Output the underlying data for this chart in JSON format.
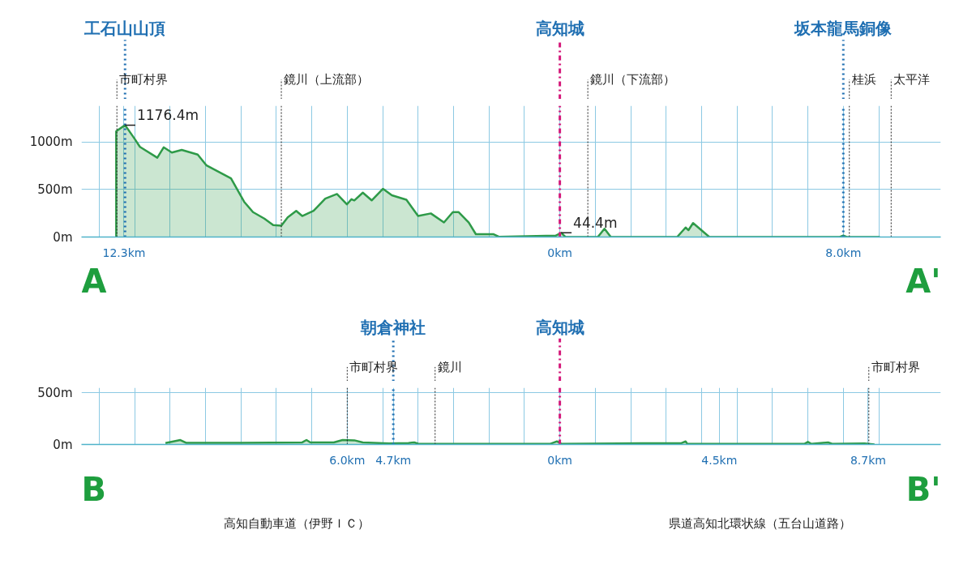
{
  "chart_data": [
    {
      "type": "area",
      "xlim": [
        -13.5,
        10.75
      ],
      "ylim": [
        0,
        1380
      ],
      "grid": true,
      "xticks": [
        {
          "value": -13,
          "label": null
        },
        {
          "value": -12.3,
          "label": "12.3km"
        },
        {
          "value": -12,
          "label": null
        },
        {
          "value": -11,
          "label": null
        },
        {
          "value": -10,
          "label": null
        },
        {
          "value": -9,
          "label": null
        },
        {
          "value": -8,
          "label": null
        },
        {
          "value": -7,
          "label": null
        },
        {
          "value": -6,
          "label": null
        },
        {
          "value": -5,
          "label": null
        },
        {
          "value": -4,
          "label": null
        },
        {
          "value": -3,
          "label": null
        },
        {
          "value": -2,
          "label": null
        },
        {
          "value": -1,
          "label": null
        },
        {
          "value": 0,
          "label": "0km"
        },
        {
          "value": 1,
          "label": null
        },
        {
          "value": 2,
          "label": null
        },
        {
          "value": 3,
          "label": null
        },
        {
          "value": 4,
          "label": null
        },
        {
          "value": 5,
          "label": null
        },
        {
          "value": 6,
          "label": null
        },
        {
          "value": 7,
          "label": null
        },
        {
          "value": 8,
          "label": "8.0km"
        },
        {
          "value": 9,
          "label": null
        }
      ],
      "yticks": [
        {
          "value": 0,
          "label": "0m"
        },
        {
          "value": 500,
          "label": "500m"
        },
        {
          "value": 1000,
          "label": "1000m"
        }
      ],
      "x": [
        -12.52,
        -12.52,
        -12.27,
        -12.01,
        -11.85,
        -11.36,
        -11.18,
        -10.95,
        -10.67,
        -10.22,
        -9.97,
        -9.28,
        -8.91,
        -8.66,
        -8.34,
        -8.09,
        -7.86,
        -7.68,
        -7.44,
        -7.27,
        -6.95,
        -6.62,
        -6.29,
        -6.01,
        -5.88,
        -5.8,
        -5.56,
        -5.31,
        -4.99,
        -4.74,
        -4.33,
        -4.0,
        -3.64,
        -3.27,
        -3.02,
        -2.86,
        -2.57,
        -2.37,
        -1.88,
        -1.72,
        -0.12,
        0.04,
        0.16,
        1.07,
        1.26,
        1.44,
        3.31,
        3.55,
        3.63,
        3.76,
        4.22,
        7.9,
        8.0,
        8.1,
        9.03
      ],
      "series": [
        {
          "color": "#2e9a48",
          "values": [
            0,
            1112,
            1176.4,
            1038,
            948,
            834,
            943,
            888,
            916,
            867,
            752,
            616,
            371,
            262,
            194,
            125,
            120,
            207,
            275,
            221,
            275,
            404,
            452,
            343,
            398,
            385,
            466,
            385,
            507,
            439,
            392,
            221,
            248,
            153,
            262,
            262,
            153,
            30,
            30,
            3,
            14,
            44.4,
            0,
            0,
            87,
            0,
            0,
            100,
            72,
            147,
            0,
            0,
            15,
            0,
            0
          ]
        }
      ],
      "ref_lines": [
        {
          "axis": "x",
          "value": -12.27,
          "label": "工石山山頂",
          "color": "#1f6fb2",
          "line_style": "dotted"
        },
        {
          "axis": "x",
          "value": 0,
          "label": "高知城",
          "color": "#d4197a",
          "line_style": "dashdot"
        },
        {
          "axis": "x",
          "value": 8.0,
          "label": "坂本龍馬銅像",
          "color": "#1f6fb2",
          "line_style": "dotted"
        },
        {
          "axis": "x",
          "value": -12.5,
          "label": "市町村界",
          "color": "#222222",
          "line_style": "dashed"
        },
        {
          "axis": "x",
          "value": -7.86,
          "label": "鏡川（上流部）",
          "color": "#222222",
          "line_style": "dashed"
        },
        {
          "axis": "x",
          "value": 0.79,
          "label": "鏡川（下流部）",
          "color": "#222222",
          "line_style": "dashed"
        },
        {
          "axis": "x",
          "value": 8.17,
          "label": "桂浜",
          "color": "#222222",
          "line_style": "dashed"
        },
        {
          "axis": "x",
          "value": 9.35,
          "label": "太平洋",
          "color": "#222222",
          "line_style": "dashed"
        }
      ],
      "annotations": [
        {
          "text": "1176.4m",
          "x": -12.27,
          "y": 1176.4
        },
        {
          "text": "44.4m",
          "x": 0.04,
          "y": 44.4
        },
        "A",
        "A'"
      ]
    },
    {
      "type": "area",
      "xlim": [
        -13.5,
        10.75
      ],
      "ylim": [
        0,
        550
      ],
      "grid": true,
      "xticks": [
        {
          "value": -13,
          "label": null
        },
        {
          "value": -12,
          "label": null
        },
        {
          "value": -11,
          "label": null
        },
        {
          "value": -10,
          "label": null
        },
        {
          "value": -9,
          "label": null
        },
        {
          "value": -8,
          "label": null
        },
        {
          "value": -7,
          "label": null
        },
        {
          "value": -6,
          "label": "6.0km"
        },
        {
          "value": -4.7,
          "label": "4.7km"
        },
        {
          "value": -5,
          "label": null
        },
        {
          "value": -4,
          "label": null
        },
        {
          "value": -3,
          "label": null
        },
        {
          "value": -2,
          "label": null
        },
        {
          "value": -1,
          "label": null
        },
        {
          "value": 0,
          "label": "0km"
        },
        {
          "value": 1,
          "label": null
        },
        {
          "value": 2,
          "label": null
        },
        {
          "value": 3,
          "label": null
        },
        {
          "value": 4,
          "label": null
        },
        {
          "value": 4.5,
          "label": "4.5km"
        },
        {
          "value": 5,
          "label": null
        },
        {
          "value": 6,
          "label": null
        },
        {
          "value": 7,
          "label": null
        },
        {
          "value": 8,
          "label": null
        },
        {
          "value": 8.7,
          "label": "8.7km"
        },
        {
          "value": 9,
          "label": null
        }
      ],
      "yticks": [
        {
          "value": 0,
          "label": "0m"
        },
        {
          "value": 500,
          "label": "500m"
        }
      ],
      "x": [
        -11.13,
        -10.71,
        -10.55,
        -8.99,
        -7.27,
        -7.15,
        -7.04,
        -6.38,
        -6.13,
        -5.8,
        -5.56,
        -4.82,
        -4.27,
        -4.11,
        -4.0,
        -3.37,
        -1.14,
        -0.28,
        -0.08,
        0.05,
        2.33,
        3.43,
        3.55,
        3.6,
        6.9,
        7.0,
        7.1,
        7.57,
        7.7,
        8.6,
        8.88
      ],
      "series": [
        {
          "color": "#2e9a48",
          "values": [
            13,
            43,
            16,
            16,
            20,
            43,
            20,
            20,
            43,
            40,
            20,
            10,
            13,
            20,
            8,
            5,
            5,
            5,
            30,
            5,
            12,
            12,
            30,
            5,
            5,
            25,
            5,
            20,
            5,
            10,
            0
          ]
        }
      ],
      "ref_lines": [
        {
          "axis": "x",
          "value": -4.7,
          "label": "朝倉神社",
          "color": "#1f6fb2",
          "line_style": "dotted"
        },
        {
          "axis": "x",
          "value": 0,
          "label": "高知城",
          "color": "#d4197a",
          "line_style": "dashdot"
        },
        {
          "axis": "x",
          "value": -6.0,
          "label": "市町村界",
          "color": "#222222",
          "line_style": "dashed"
        },
        {
          "axis": "x",
          "value": -3.52,
          "label": "鏡川",
          "color": "#222222",
          "line_style": "dashed"
        },
        {
          "axis": "x",
          "value": 8.72,
          "label": "市町村界",
          "color": "#222222",
          "line_style": "dashed"
        }
      ],
      "annotations": [
        "B",
        "B'",
        "高知自動車道（伊野ＩＣ）",
        "県道高知北環状線（五台山道路）"
      ]
    }
  ]
}
